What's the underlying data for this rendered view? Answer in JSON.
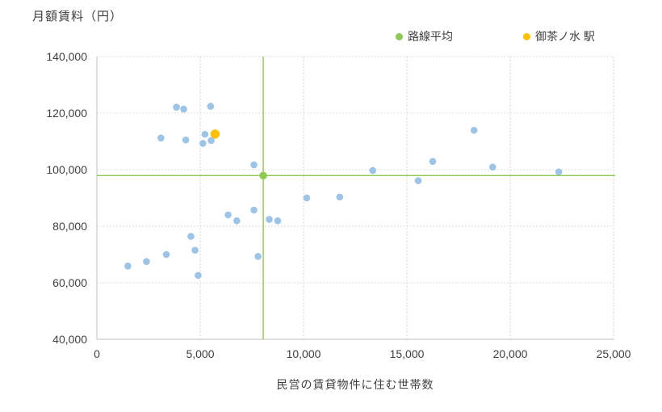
{
  "y_axis_title": "月額賃料（円）",
  "x_axis_title": "民営の賃貸物件に住む世帯数",
  "colors": {
    "stations": "#9dc3e6",
    "route_average": "#8ec954",
    "ochanomizu": "#ffc000",
    "gridline": "#d9d9d9",
    "axis_line": "#bfbfbf",
    "text": "#404040"
  },
  "chart_data": {
    "type": "scatter",
    "title": "",
    "xlabel": "民営の賃貸物件に住む世帯数",
    "ylabel": "月額賃料（円）",
    "xlim": [
      0,
      25000
    ],
    "ylim": [
      40000,
      140000
    ],
    "grid": "dashed",
    "legend_position": "top",
    "x_ticks": [
      {
        "value": 0,
        "label": "0"
      },
      {
        "value": 5000,
        "label": "5,000"
      },
      {
        "value": 10000,
        "label": "10,000"
      },
      {
        "value": 15000,
        "label": "15,000"
      },
      {
        "value": 20000,
        "label": "20,000"
      },
      {
        "value": 25000,
        "label": "25,000"
      }
    ],
    "y_ticks": [
      {
        "value": 40000,
        "label": "40,000"
      },
      {
        "value": 60000,
        "label": "60,000"
      },
      {
        "value": 80000,
        "label": "80,000"
      },
      {
        "value": 100000,
        "label": "100,000"
      },
      {
        "value": 120000,
        "label": "120,000"
      },
      {
        "value": 140000,
        "label": "140,000"
      }
    ],
    "series": [
      {
        "name": "stations",
        "label": "",
        "color": "#9dc3e6",
        "marker_radius": 4.3,
        "crosshair": false,
        "points": [
          [
            1500,
            65900
          ],
          [
            2400,
            67500
          ],
          [
            3360,
            70000
          ],
          [
            4550,
            76400
          ],
          [
            4750,
            71500
          ],
          [
            4900,
            62600
          ],
          [
            3100,
            111200
          ],
          [
            4300,
            110500
          ],
          [
            3850,
            122100
          ],
          [
            4200,
            121400
          ],
          [
            5500,
            122400
          ],
          [
            5230,
            112500
          ],
          [
            5530,
            110300
          ],
          [
            5130,
            109300
          ],
          [
            7600,
            101700
          ],
          [
            7600,
            85700
          ],
          [
            6350,
            84000
          ],
          [
            6770,
            81900
          ],
          [
            8340,
            82400
          ],
          [
            8750,
            81900
          ],
          [
            7800,
            69300
          ],
          [
            10150,
            90000
          ],
          [
            11750,
            90300
          ],
          [
            13350,
            99700
          ],
          [
            15550,
            96100
          ],
          [
            16250,
            102900
          ],
          [
            18250,
            113900
          ],
          [
            19150,
            100900
          ],
          [
            22350,
            99200
          ]
        ]
      },
      {
        "name": "route_average",
        "label": "路線平均",
        "color": "#8ec954",
        "marker_radius": 4.8,
        "crosshair": true,
        "points": [
          [
            8050,
            97900
          ]
        ]
      },
      {
        "name": "ochanomizu",
        "label": "御茶ノ水 駅",
        "color": "#ffc000",
        "marker_radius": 5.7,
        "crosshair": false,
        "points": [
          [
            5720,
            112600
          ]
        ]
      }
    ]
  }
}
